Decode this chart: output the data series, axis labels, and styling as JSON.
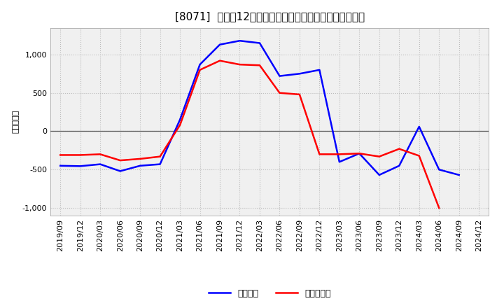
{
  "title": "[8071]  利益だ12か月移動合計の対前年同期増減額の推移",
  "ylabel": "（百万円）",
  "x_labels": [
    "2019/09",
    "2019/12",
    "2020/03",
    "2020/06",
    "2020/09",
    "2020/12",
    "2021/03",
    "2021/06",
    "2021/09",
    "2021/12",
    "2022/03",
    "2022/06",
    "2022/09",
    "2022/12",
    "2023/03",
    "2023/06",
    "2023/09",
    "2023/12",
    "2024/03",
    "2024/06",
    "2024/09",
    "2024/12"
  ],
  "keijo_rieki": [
    -450,
    -455,
    -430,
    -520,
    -450,
    -430,
    150,
    870,
    1130,
    1180,
    1150,
    720,
    750,
    800,
    -400,
    -290,
    -570,
    -450,
    60,
    -500,
    -570,
    null
  ],
  "touki_junrieki": [
    -310,
    -310,
    -300,
    -380,
    -360,
    -330,
    80,
    800,
    920,
    870,
    860,
    500,
    480,
    -300,
    -300,
    -290,
    -330,
    -230,
    -320,
    -1000,
    null,
    null
  ],
  "blue_color": "#0000FF",
  "red_color": "#FF0000",
  "bg_color": "#FFFFFF",
  "plot_bg_color": "#F0F0F0",
  "ylim": [
    -1100,
    1350
  ],
  "yticks": [
    -1000,
    -500,
    0,
    500,
    1000
  ],
  "grid_color": "#BBBBBB",
  "title_fontsize": 11,
  "label_fontsize": 8,
  "legend_fontsize": 9,
  "legend_label_blue": "経常利益",
  "legend_label_red": "当期純利益"
}
